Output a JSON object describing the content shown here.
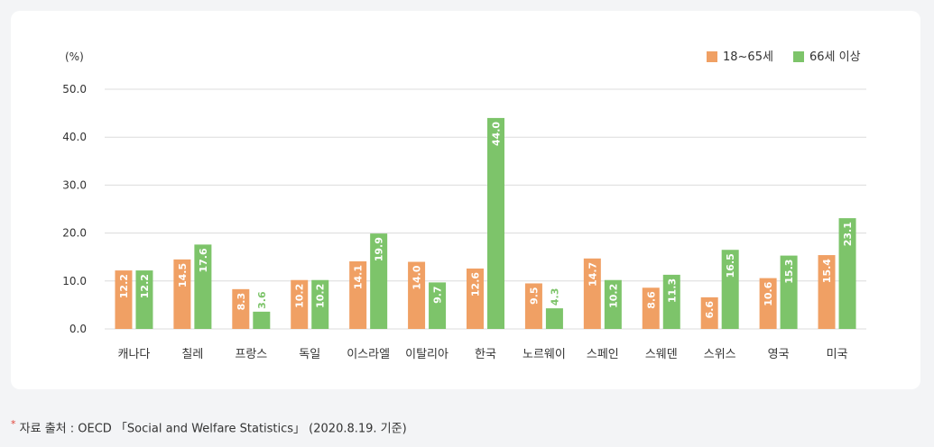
{
  "chart_data": {
    "type": "bar",
    "unit_label": "(%)",
    "categories": [
      "캐나다",
      "칠레",
      "프랑스",
      "독일",
      "이스라엘",
      "이탈리아",
      "한국",
      "노르웨이",
      "스페인",
      "스웨덴",
      "스위스",
      "영국",
      "미국"
    ],
    "series": [
      {
        "name": "18~65세",
        "color": "#f0a064",
        "values": [
          12.2,
          14.5,
          8.3,
          10.2,
          14.1,
          14.0,
          12.6,
          9.5,
          14.7,
          8.6,
          6.6,
          10.6,
          15.4
        ]
      },
      {
        "name": "66세 이상",
        "color": "#7dc46a",
        "values": [
          12.2,
          17.6,
          3.6,
          10.2,
          19.9,
          9.7,
          44.0,
          4.3,
          10.2,
          11.3,
          16.5,
          15.3,
          23.1
        ]
      }
    ],
    "ylim": [
      0,
      50
    ],
    "yticks": [
      "0.0",
      "10.0",
      "20.0",
      "30.0",
      "40.0",
      "50.0"
    ],
    "grid": true,
    "legend_position": "top-right"
  },
  "footnote": {
    "star": "*",
    "text": "자료 출처 : OECD 「Social and Welfare Statistics」 (2020.8.19. 기준)"
  }
}
